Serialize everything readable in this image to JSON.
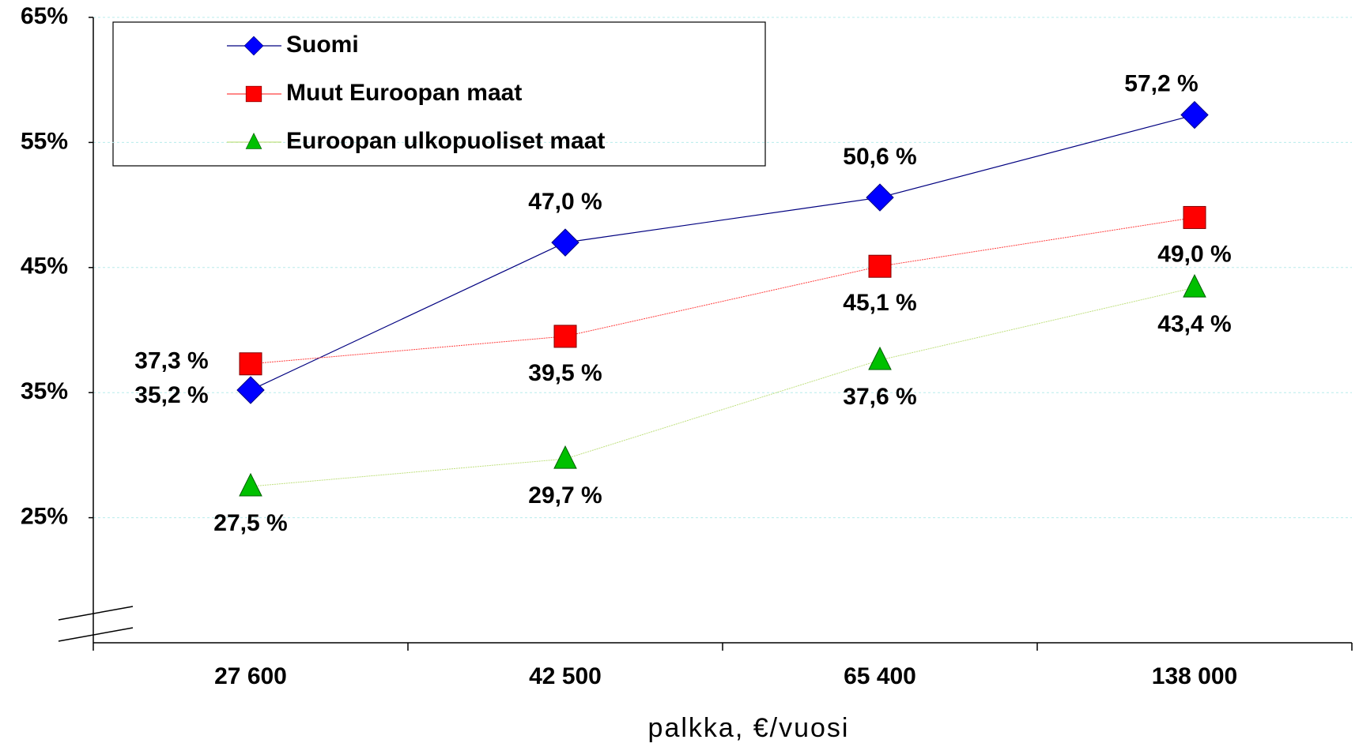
{
  "chart_data": {
    "type": "line",
    "categories": [
      "27 600",
      "42 500",
      "65 400",
      "138 000"
    ],
    "x_label": "palkka, €/vuosi",
    "ylim": [
      15,
      65
    ],
    "yticks": [
      {
        "value": 25,
        "label": "25%"
      },
      {
        "value": 35,
        "label": "35%"
      },
      {
        "value": 45,
        "label": "45%"
      },
      {
        "value": 55,
        "label": "55%"
      },
      {
        "value": 65,
        "label": "65%"
      }
    ],
    "grid": true,
    "legend": "top-left",
    "series": [
      {
        "name": "Suomi",
        "color": "#0000ff",
        "line_color": "#000080",
        "marker": "diamond",
        "values": [
          35.2,
          47.0,
          50.6,
          57.2
        ],
        "value_labels": [
          "35,2 %",
          "47,0 %",
          "50,6 %",
          "57,2 %"
        ]
      },
      {
        "name": "Muut Euroopan maat",
        "color": "#ff0000",
        "line_color": "#ff4040",
        "marker": "square",
        "values": [
          37.3,
          39.5,
          45.1,
          49.0
        ],
        "value_labels": [
          "37,3 %",
          "39,5 %",
          "45,1 %",
          "49,0 %"
        ]
      },
      {
        "name": "Euroopan ulkopuoliset maat",
        "color": "#00c000",
        "line_color": "#c0e080",
        "marker": "triangle",
        "values": [
          27.5,
          29.7,
          37.6,
          43.4
        ],
        "value_labels": [
          "27,5 %",
          "29,7 %",
          "37,6 %",
          "43,4 %"
        ]
      }
    ]
  }
}
